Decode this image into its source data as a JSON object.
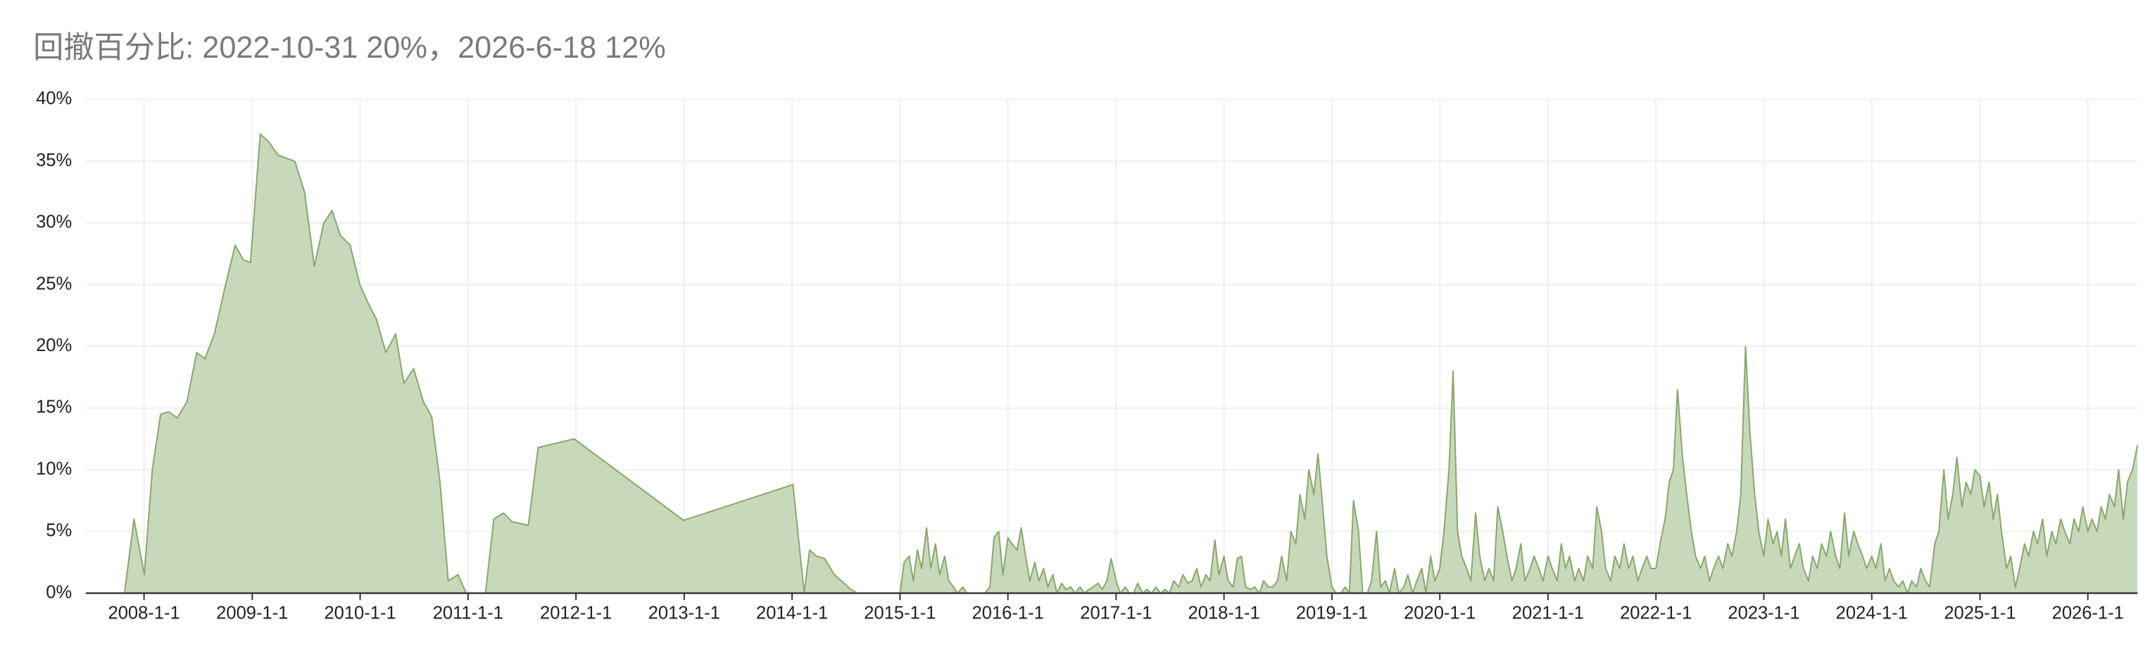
{
  "chart_data": {
    "type": "area",
    "title": "回撤百分比: 2022-10-31 20%，2026-6-18 12%",
    "x": [
      "2007-10-27",
      "2007-11-28",
      "2008-1-2",
      "2008-1-29",
      "2008-2-26",
      "2008-3-25",
      "2008-4-22",
      "2008-5-25",
      "2008-6-27",
      "2008-7-25",
      "2008-8-26",
      "2008-9-28",
      "2008-11-4",
      "2008-12-2",
      "2008-12-26",
      "2009-1-28",
      "2009-2-25",
      "2009-3-29",
      "2009-5-25",
      "2009-6-27",
      "2009-7-30",
      "2009-8-31",
      "2009-9-28",
      "2009-10-26",
      "2009-11-28",
      "2009-12-31",
      "2010-1-28",
      "2010-2-25",
      "2010-3-29",
      "2010-5-1",
      "2010-5-29",
      "2010-7-1",
      "2010-8-3",
      "2010-8-31",
      "2010-9-28",
      "2010-10-26",
      "2010-11-28",
      "2010-12-26",
      "2011-3-1",
      "2011-3-29",
      "2011-5-1",
      "2011-5-29",
      "2011-7-24",
      "2011-8-26",
      "2011-12-26",
      "2012-12-30",
      "2014-1-4",
      "2014-2-11",
      "2014-3-1",
      "2014-3-24",
      "2014-4-21",
      "2014-5-24",
      "2014-7-19",
      "2014-8-11",
      "2015-1-1",
      "2015-1-15",
      "2015-2-1",
      "2015-2-15",
      "2015-3-1",
      "2015-3-15",
      "2015-4-1",
      "2015-4-15",
      "2015-5-1",
      "2015-5-15",
      "2015-6-1",
      "2015-6-15",
      "2015-7-1",
      "2015-7-15",
      "2015-8-1",
      "2015-8-15",
      "2015-9-1",
      "2015-9-15",
      "2015-10-1",
      "2015-10-15",
      "2015-11-1",
      "2015-11-15",
      "2015-12-1",
      "2015-12-15",
      "2016-1-1",
      "2016-1-15",
      "2016-2-1",
      "2016-2-15",
      "2016-3-1",
      "2016-3-15",
      "2016-4-1",
      "2016-4-15",
      "2016-5-1",
      "2016-5-15",
      "2016-6-1",
      "2016-6-15",
      "2016-7-1",
      "2016-7-15",
      "2016-8-1",
      "2016-8-15",
      "2016-9-1",
      "2016-9-15",
      "2016-10-1",
      "2016-10-15",
      "2016-11-1",
      "2016-11-15",
      "2016-12-1",
      "2016-12-15",
      "2017-1-1",
      "2017-1-15",
      "2017-2-1",
      "2017-2-15",
      "2017-3-1",
      "2017-3-15",
      "2017-4-1",
      "2017-4-15",
      "2017-5-1",
      "2017-5-15",
      "2017-6-1",
      "2017-6-15",
      "2017-7-1",
      "2017-7-15",
      "2017-8-1",
      "2017-8-15",
      "2017-9-1",
      "2017-9-15",
      "2017-10-1",
      "2017-10-15",
      "2017-11-1",
      "2017-11-15",
      "2017-12-1",
      "2017-12-15",
      "2018-1-1",
      "2018-1-15",
      "2018-2-1",
      "2018-2-15",
      "2018-3-1",
      "2018-3-15",
      "2018-4-1",
      "2018-4-15",
      "2018-5-1",
      "2018-5-15",
      "2018-6-1",
      "2018-6-15",
      "2018-7-1",
      "2018-7-15",
      "2018-8-1",
      "2018-8-15",
      "2018-9-1",
      "2018-9-15",
      "2018-10-1",
      "2018-10-15",
      "2018-11-1",
      "2018-11-15",
      "2018-12-1",
      "2018-12-15",
      "2019-1-1",
      "2019-1-15",
      "2019-2-1",
      "2019-2-15",
      "2019-3-1",
      "2019-3-15",
      "2019-4-1",
      "2019-4-15",
      "2019-5-1",
      "2019-5-15",
      "2019-6-1",
      "2019-6-15",
      "2019-7-1",
      "2019-7-15",
      "2019-8-1",
      "2019-8-15",
      "2019-9-1",
      "2019-9-15",
      "2019-10-1",
      "2019-10-15",
      "2019-11-1",
      "2019-11-15",
      "2019-12-1",
      "2019-12-15",
      "2020-1-1",
      "2020-1-15",
      "2020-2-1",
      "2020-2-15",
      "2020-3-1",
      "2020-3-15",
      "2020-4-1",
      "2020-4-15",
      "2020-5-1",
      "2020-5-15",
      "2020-6-1",
      "2020-6-15",
      "2020-7-1",
      "2020-7-15",
      "2020-8-1",
      "2020-8-15",
      "2020-9-1",
      "2020-9-15",
      "2020-10-1",
      "2020-10-15",
      "2020-11-1",
      "2020-11-15",
      "2020-12-1",
      "2020-12-15",
      "2021-1-1",
      "2021-1-15",
      "2021-2-1",
      "2021-2-15",
      "2021-3-1",
      "2021-3-15",
      "2021-4-1",
      "2021-4-15",
      "2021-5-1",
      "2021-5-15",
      "2021-6-1",
      "2021-6-15",
      "2021-7-1",
      "2021-7-15",
      "2021-8-1",
      "2021-8-15",
      "2021-9-1",
      "2021-9-15",
      "2021-10-1",
      "2021-10-15",
      "2021-11-1",
      "2021-11-15",
      "2021-12-1",
      "2021-12-15",
      "2022-1-1",
      "2022-1-15",
      "2022-2-1",
      "2022-2-15",
      "2022-3-1",
      "2022-3-15",
      "2022-4-1",
      "2022-4-15",
      "2022-5-1",
      "2022-5-15",
      "2022-6-1",
      "2022-6-15",
      "2022-7-1",
      "2022-7-15",
      "2022-8-1",
      "2022-8-15",
      "2022-9-1",
      "2022-9-15",
      "2022-10-1",
      "2022-10-15",
      "2022-10-31",
      "2022-11-15",
      "2022-12-1",
      "2022-12-15",
      "2023-1-1",
      "2023-1-15",
      "2023-2-1",
      "2023-2-15",
      "2023-3-1",
      "2023-3-15",
      "2023-4-1",
      "2023-4-15",
      "2023-5-1",
      "2023-5-15",
      "2023-6-1",
      "2023-6-15",
      "2023-7-1",
      "2023-7-15",
      "2023-8-1",
      "2023-8-15",
      "2023-9-1",
      "2023-9-15",
      "2023-10-1",
      "2023-10-15",
      "2023-11-1",
      "2023-11-15",
      "2023-12-1",
      "2023-12-15",
      "2024-1-1",
      "2024-1-15",
      "2024-2-1",
      "2024-2-15",
      "2024-3-1",
      "2024-3-15",
      "2024-4-1",
      "2024-4-15",
      "2024-5-1",
      "2024-5-15",
      "2024-6-1",
      "2024-6-15",
      "2024-7-1",
      "2024-7-15",
      "2024-8-1",
      "2024-8-15",
      "2024-9-1",
      "2024-9-15",
      "2024-10-1",
      "2024-10-15",
      "2024-11-1",
      "2024-11-15",
      "2024-12-1",
      "2024-12-15",
      "2025-1-1",
      "2025-1-15",
      "2025-2-1",
      "2025-2-15",
      "2025-3-1",
      "2025-3-15",
      "2025-4-1",
      "2025-4-15",
      "2025-5-1",
      "2025-5-15",
      "2025-6-1",
      "2025-6-15",
      "2025-7-1",
      "2025-7-15",
      "2025-8-1",
      "2025-8-15",
      "2025-9-1",
      "2025-9-15",
      "2025-10-1",
      "2025-10-15",
      "2025-11-1",
      "2025-11-15",
      "2025-12-1",
      "2025-12-15",
      "2026-1-1",
      "2026-1-15",
      "2026-2-1",
      "2026-2-15",
      "2026-3-1",
      "2026-3-15",
      "2026-4-1",
      "2026-4-15",
      "2026-5-1",
      "2026-5-15",
      "2026-6-1",
      "2026-6-18"
    ],
    "values": [
      0,
      6,
      1.5,
      10,
      14.5,
      14.7,
      14.2,
      15.5,
      19.5,
      19,
      21,
      24.5,
      28.2,
      27,
      26.8,
      37.2,
      36.6,
      35.5,
      35,
      32.5,
      26.5,
      30,
      31,
      29,
      28.2,
      25,
      23.5,
      22.2,
      19.5,
      21,
      17,
      18.2,
      15.5,
      14.3,
      9,
      1,
      1.5,
      0,
      0,
      6,
      6.5,
      5.8,
      5.5,
      11.8,
      12.5,
      5.9,
      8.8,
      0,
      3.5,
      3,
      2.8,
      1.5,
      0.3,
      0,
      0,
      2.5,
      3,
      1,
      3.5,
      2,
      5.3,
      2,
      4,
      1.5,
      3,
      1,
      0.5,
      0,
      0.5,
      0,
      0,
      0,
      0,
      0,
      0.5,
      4.5,
      5,
      1.5,
      4.5,
      4,
      3.5,
      5.3,
      3,
      1,
      2.5,
      1,
      2,
      0.5,
      1.5,
      0,
      0.8,
      0.3,
      0.5,
      0,
      0.5,
      0,
      0.3,
      0.5,
      0.8,
      0.3,
      1,
      2.8,
      1,
      0,
      0.5,
      0,
      0,
      0.8,
      0,
      0.3,
      0,
      0.5,
      0,
      0.3,
      0,
      1,
      0.5,
      1.5,
      0.8,
      1,
      2,
      0.5,
      1.5,
      1,
      4.3,
      1.5,
      3,
      1,
      0.5,
      2.8,
      3,
      0.5,
      0.3,
      0.5,
      0,
      1,
      0.5,
      0.5,
      1,
      3,
      1,
      5,
      4,
      8,
      6,
      10,
      8,
      11.3,
      7,
      3,
      0.5,
      0,
      0,
      0.5,
      0,
      7.5,
      5,
      0,
      0,
      1,
      5,
      0.5,
      1,
      0,
      2,
      0,
      0.5,
      1.5,
      0,
      1,
      2,
      0,
      3,
      1,
      2,
      5,
      10,
      18,
      5,
      3,
      2,
      1,
      6.5,
      3,
      1,
      2,
      1,
      7,
      5,
      3,
      1,
      2,
      4,
      1,
      2,
      3,
      2,
      1,
      3,
      2,
      1,
      4,
      2,
      3,
      1,
      2,
      1,
      3,
      2,
      7,
      5,
      2,
      1,
      3,
      2,
      4,
      2,
      3,
      1,
      2,
      3,
      2,
      2,
      4,
      6,
      9,
      10,
      16.5,
      11,
      8,
      5,
      3,
      2,
      3,
      1,
      2,
      3,
      2,
      4,
      3,
      5,
      8,
      20,
      13,
      8,
      5,
      3,
      6,
      4,
      5,
      3,
      6,
      2,
      3,
      4,
      2,
      1,
      3,
      2,
      4,
      3,
      5,
      3,
      2,
      6.5,
      3,
      5,
      4,
      3,
      2,
      3,
      2,
      4,
      1,
      2,
      1,
      0.5,
      1,
      0,
      1,
      0.5,
      2,
      1,
      0.5,
      4,
      5,
      10,
      6,
      8,
      11,
      7,
      9,
      8,
      10,
      9.5,
      7,
      9,
      6,
      8,
      5,
      2,
      3,
      0.5,
      2,
      4,
      3,
      5,
      4,
      6,
      3,
      5,
      4,
      6,
      5,
      4,
      6,
      5,
      7,
      5,
      6,
      5,
      7,
      6,
      8,
      7,
      10,
      6,
      9,
      10,
      12
    ],
    "xlim": [
      "2007-6-18",
      "2026-6-18"
    ],
    "xticks": [
      "2008-1-1",
      "2009-1-1",
      "2010-1-1",
      "2011-1-1",
      "2012-1-1",
      "2013-1-1",
      "2014-1-1",
      "2015-1-1",
      "2016-1-1",
      "2017-1-1",
      "2018-1-1",
      "2019-1-1",
      "2020-1-1",
      "2021-1-1",
      "2022-1-1",
      "2023-1-1",
      "2024-1-1",
      "2025-1-1",
      "2026-1-1"
    ],
    "ylim": [
      0,
      40
    ],
    "yticks": [
      {
        "value": 0,
        "label": "0%"
      },
      {
        "value": 5,
        "label": "5%"
      },
      {
        "value": 10,
        "label": "10%"
      },
      {
        "value": 15,
        "label": "15%"
      },
      {
        "value": 20,
        "label": "20%"
      },
      {
        "value": 25,
        "label": "25%"
      },
      {
        "value": 30,
        "label": "30%"
      },
      {
        "value": 35,
        "label": "35%"
      },
      {
        "value": 40,
        "label": "40%"
      }
    ],
    "grid": true,
    "color": "#86a86a",
    "fill_color": "#c8d8ba"
  }
}
